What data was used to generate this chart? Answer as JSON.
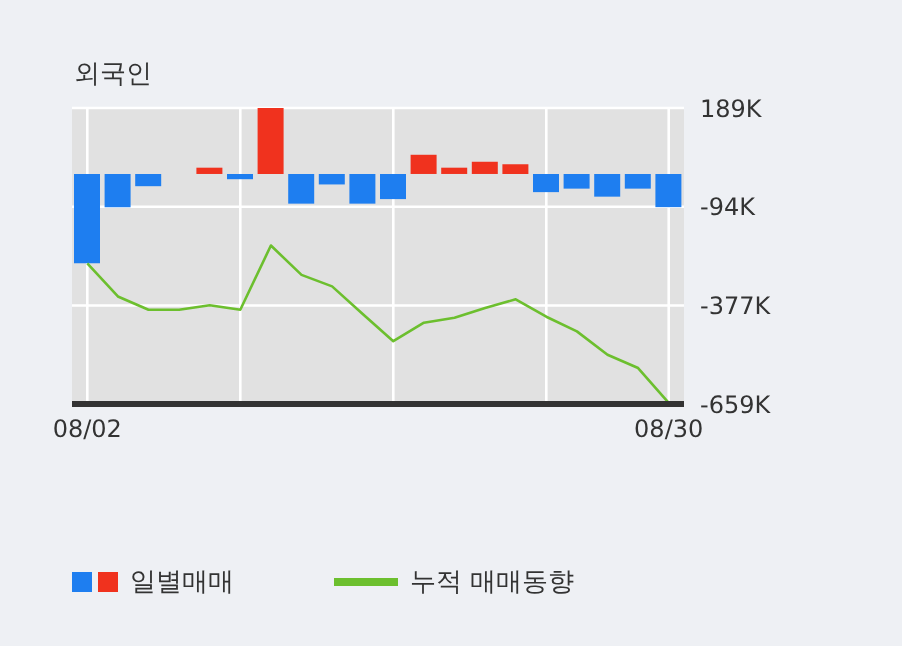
{
  "chart_data": {
    "type": "bar",
    "title": "외국인",
    "categories": [
      "08/02",
      null,
      null,
      null,
      null,
      null,
      null,
      null,
      null,
      null,
      null,
      null,
      null,
      null,
      null,
      null,
      null,
      null,
      null,
      "08/30"
    ],
    "series": [
      {
        "name": "일별매매",
        "colors": [
          "#1e7ef0",
          "#1e7ef0",
          "#1e7ef0",
          "#1e7ef0",
          "#f0321e",
          "#1e7ef0",
          "#f0321e",
          "#1e7ef0",
          "#1e7ef0",
          "#1e7ef0",
          "#1e7ef0",
          "#f0321e",
          "#f0321e",
          "#f0321e",
          "#f0321e",
          "#1e7ef0",
          "#1e7ef0",
          "#1e7ef0",
          "#1e7ef0",
          "#1e7ef0"
        ],
        "values": [
          -256,
          -95,
          -35,
          0,
          18,
          -15,
          189,
          -85,
          -30,
          -85,
          -72,
          55,
          18,
          35,
          28,
          -52,
          -42,
          -65,
          -42,
          -95
        ]
      },
      {
        "name": "누적 매매동향",
        "type": "line",
        "color": "#6cbf2e",
        "values": [
          -256,
          -351,
          -389,
          -389,
          -376,
          -389,
          -205,
          -289,
          -322,
          -401,
          -479,
          -426,
          -412,
          -384,
          -359,
          -409,
          -451,
          -518,
          -556,
          -656
        ]
      }
    ],
    "ylim": [
      -659,
      189
    ],
    "yticks": [
      {
        "value": 189,
        "label": "189K"
      },
      {
        "value": -94,
        "label": "-94K"
      },
      {
        "value": -377,
        "label": "-377K"
      },
      {
        "value": -659,
        "label": "-659K"
      }
    ],
    "grid": true,
    "legend": "bottom left",
    "marker": "none"
  }
}
